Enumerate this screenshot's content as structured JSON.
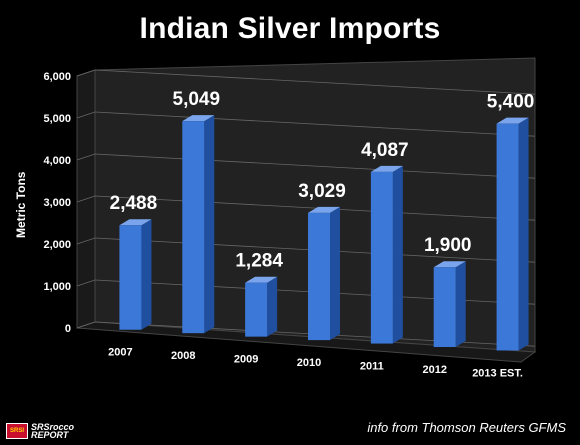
{
  "chart_data": {
    "type": "bar",
    "title": "Indian Silver Imports",
    "ylabel": "Metric Tons",
    "xlabel": "",
    "categories": [
      "2007",
      "2008",
      "2009",
      "2010",
      "2011",
      "2012",
      "2013 EST."
    ],
    "values": [
      2488,
      5049,
      1284,
      3029,
      4087,
      1900,
      5400
    ],
    "value_labels": [
      "2,488",
      "5,049",
      "1,284",
      "3,029",
      "4,087",
      "1,900",
      "5,400"
    ],
    "ylim": [
      0,
      6000
    ],
    "yticks": [
      0,
      1000,
      2000,
      3000,
      4000,
      5000,
      6000
    ],
    "ytick_labels": [
      "0",
      "1,000",
      "2,000",
      "3,000",
      "4,000",
      "5,000",
      "6,000"
    ],
    "grid": true,
    "legend": "none",
    "bar_color": "#3b78d8"
  },
  "credit": "info from Thomson Reuters GFMS",
  "logo": {
    "badge": "SRSI",
    "line1": "SRSrocco",
    "line2": "REPORT"
  },
  "colors": {
    "background": "#000000",
    "bar": "#3b78d8",
    "bar_dark": "#1f4f9e",
    "bar_top": "#7aa5ec",
    "wall": "#222222",
    "grid": "#666666"
  }
}
